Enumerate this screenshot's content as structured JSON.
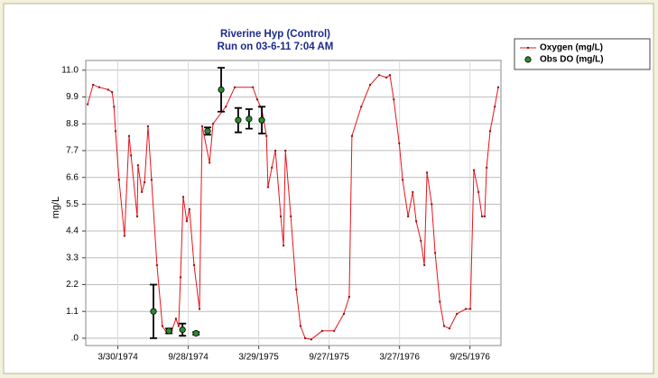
{
  "chart_data": {
    "type": "line",
    "title": "Riverine Hyp (Control)",
    "subtitle": "Run on 03-6-11 7:04 AM",
    "y_label": "mg/L",
    "xlim": [
      "1974-01-06",
      "1976-12-14"
    ],
    "xticks": [
      {
        "value": "1974-03-30",
        "label": "3/30/1974"
      },
      {
        "value": "1974-09-28",
        "label": "9/28/1974"
      },
      {
        "value": "1975-03-29",
        "label": "3/29/1975"
      },
      {
        "value": "1975-09-27",
        "label": "9/27/1975"
      },
      {
        "value": "1976-03-27",
        "label": "3/27/1976"
      },
      {
        "value": "1976-09-25",
        "label": "9/25/1976"
      }
    ],
    "ylim": [
      -0.3,
      11.4
    ],
    "yticks": [
      {
        "value": 0,
        "label": ".0"
      },
      1.1,
      2.2,
      3.3,
      4.4,
      5.5,
      6.6,
      7.7,
      8.8,
      9.9,
      {
        "value": 11,
        "label": "11.0"
      }
    ],
    "grid": true,
    "legend": "right",
    "series": [
      {
        "name": "Oxygen (mg/L)",
        "color": "#e8141c",
        "type": "line",
        "x": [
          "1974-01-11",
          "1974-01-25",
          "1974-02-10",
          "1974-03-05",
          "1974-03-15",
          "1974-03-20",
          "1974-03-24",
          "1974-04-02",
          "1974-04-16",
          "1974-04-28",
          "1974-05-03",
          "1974-05-19",
          "1974-05-21",
          "1974-05-31",
          "1974-06-07",
          "1974-06-16",
          "1974-06-25",
          "1974-07-09",
          "1974-07-23",
          "1974-08-04",
          "1974-08-16",
          "1974-08-27",
          "1974-09-03",
          "1974-09-08",
          "1974-09-15",
          "1974-09-24",
          "1974-10-01",
          "1974-10-13",
          "1974-10-27",
          "1974-11-03",
          "1974-11-22",
          "1974-12-01",
          "1975-01-03",
          "1975-01-26",
          "1975-03-14",
          "1975-03-25",
          "1975-04-06",
          "1975-04-18",
          "1975-04-22",
          "1975-05-02",
          "1975-05-11",
          "1975-05-25",
          "1975-06-01",
          "1975-06-06",
          "1975-06-20",
          "1975-07-04",
          "1975-07-15",
          "1975-07-27",
          "1975-08-12",
          "1975-09-09",
          "1975-10-10",
          "1975-11-04",
          "1975-11-18",
          "1975-11-25",
          "1975-12-19",
          "1976-01-11",
          "1976-02-03",
          "1976-02-22",
          "1976-03-02",
          "1976-03-12",
          "1976-03-26",
          "1976-04-04",
          "1976-04-18",
          "1976-04-30",
          "1976-05-09",
          "1976-05-21",
          "1976-05-30",
          "1976-06-06",
          "1976-06-18",
          "1976-06-27",
          "1976-07-09",
          "1976-07-20",
          "1976-08-03",
          "1976-08-22",
          "1976-09-14",
          "1976-09-26",
          "1976-10-05",
          "1976-10-17",
          "1976-10-26",
          "1976-11-02",
          "1976-11-07",
          "1976-11-16",
          "1976-11-28",
          "1976-12-07"
        ],
        "values": [
          9.6,
          10.4,
          10.3,
          10.2,
          10.1,
          9.5,
          8.5,
          6.5,
          4.2,
          8.3,
          7.5,
          5.0,
          7.1,
          6.0,
          6.4,
          8.7,
          6.5,
          3.0,
          0.5,
          0.2,
          0.3,
          0.8,
          0.5,
          2.5,
          5.8,
          4.8,
          5.3,
          3.0,
          1.2,
          8.7,
          7.2,
          8.8,
          9.5,
          10.3,
          10.3,
          9.8,
          9.4,
          8.3,
          6.2,
          7.0,
          7.7,
          5.0,
          3.8,
          7.7,
          5.0,
          2.0,
          0.5,
          0.0,
          -0.05,
          0.3,
          0.3,
          1.0,
          1.7,
          8.3,
          9.5,
          10.4,
          10.8,
          10.7,
          10.8,
          9.8,
          8.0,
          6.5,
          5.0,
          6.0,
          4.8,
          4.0,
          3.0,
          6.8,
          5.5,
          3.5,
          1.5,
          0.5,
          0.4,
          1.0,
          1.2,
          1.2,
          6.9,
          6.0,
          5.0,
          5.0,
          7.0,
          8.5,
          9.5,
          10.3
        ]
      },
      {
        "name": "Obs DO (mg/L)",
        "color": "#2e8b2e",
        "type": "scatter",
        "x": [
          "1974-06-30",
          "1974-08-09",
          "1974-09-13",
          "1974-10-18",
          "1974-11-17",
          "1974-12-22",
          "1975-02-04",
          "1975-03-04",
          "1975-04-06"
        ],
        "values": [
          1.1,
          0.3,
          0.35,
          0.2,
          8.5,
          10.2,
          8.95,
          9.0,
          8.95
        ],
        "errors": [
          1.1,
          0.1,
          0.25,
          0.05,
          0.15,
          0.9,
          0.5,
          0.4,
          0.55
        ]
      }
    ]
  }
}
